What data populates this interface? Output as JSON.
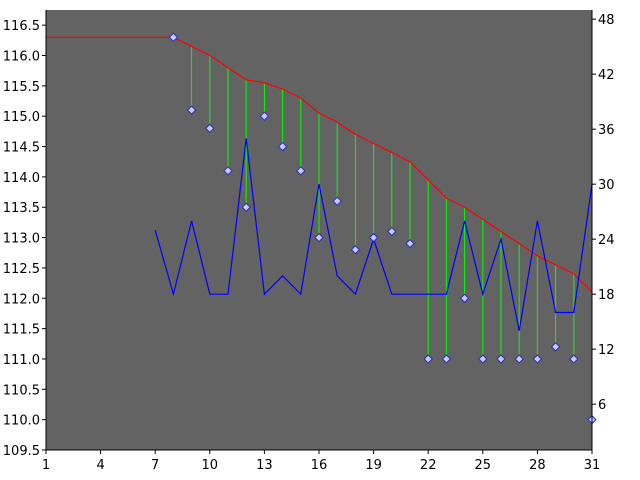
{
  "chart_data": {
    "type": "line",
    "title": "",
    "xlabel": "",
    "ylabel": "",
    "y2label": "",
    "xlim": [
      1,
      31
    ],
    "ylim": [
      109.5,
      116.75
    ],
    "y2lim": [
      1,
      49
    ],
    "grid": false,
    "legend": "none",
    "x_ticks": [
      1,
      4,
      7,
      10,
      13,
      16,
      19,
      22,
      25,
      28,
      31
    ],
    "y_ticks": [
      "109.5",
      "110.0",
      "110.5",
      "111.0",
      "111.5",
      "112.0",
      "112.5",
      "113.0",
      "113.5",
      "114.0",
      "114.5",
      "115.0",
      "115.5",
      "116.0",
      "116.5"
    ],
    "y2_ticks": [
      6,
      12,
      18,
      24,
      30,
      36,
      42,
      48
    ],
    "colors": {
      "plot_background": "#636363",
      "upper_line": "#ff0000",
      "markers": "#c6c8ff",
      "marker_border": "#2a2fb0",
      "drop_lines": "#00ff00",
      "secondary_line": "#0000ff"
    },
    "series": [
      {
        "axis": "left",
        "style": "line",
        "x": [
          1,
          2,
          3,
          4,
          5,
          6,
          7,
          8,
          9,
          10,
          11,
          12,
          13,
          14,
          15,
          16,
          17,
          18,
          19,
          20,
          21,
          22,
          23,
          24,
          25,
          26,
          27,
          28,
          29,
          30,
          31
        ],
        "values": [
          116.3,
          116.3,
          116.3,
          116.3,
          116.3,
          116.3,
          116.3,
          116.3,
          116.15,
          116.0,
          115.8,
          115.6,
          115.55,
          115.45,
          115.3,
          115.05,
          114.9,
          114.7,
          114.55,
          114.4,
          114.25,
          113.95,
          113.65,
          113.5,
          113.3,
          113.1,
          112.9,
          112.7,
          112.55,
          112.4,
          112.1
        ]
      },
      {
        "axis": "left",
        "style": "markers",
        "x": [
          8,
          9,
          10,
          11,
          12,
          13,
          14,
          15,
          16,
          17,
          18,
          19,
          20,
          21,
          22,
          23,
          24,
          25,
          26,
          27,
          28,
          29,
          30,
          31
        ],
        "values": [
          116.3,
          115.1,
          114.8,
          114.1,
          113.5,
          115.0,
          114.5,
          114.1,
          113.0,
          113.6,
          112.8,
          113.0,
          113.1,
          112.9,
          111.0,
          111.0,
          112.0,
          111.0,
          111.0,
          111.0,
          111.0,
          111.2,
          111.0,
          110.0
        ]
      },
      {
        "axis": "right",
        "style": "line",
        "x": [
          7,
          8,
          9,
          10,
          11,
          12,
          13,
          14,
          15,
          16,
          17,
          18,
          19,
          20,
          21,
          22,
          23,
          24,
          25,
          26,
          27,
          28,
          29,
          30,
          31
        ],
        "values": [
          25,
          18,
          26,
          18,
          18,
          35,
          18,
          20,
          18,
          30,
          20,
          18,
          24,
          18,
          18,
          18,
          18,
          26,
          18,
          24,
          14,
          26,
          16,
          16,
          30
        ]
      }
    ]
  }
}
